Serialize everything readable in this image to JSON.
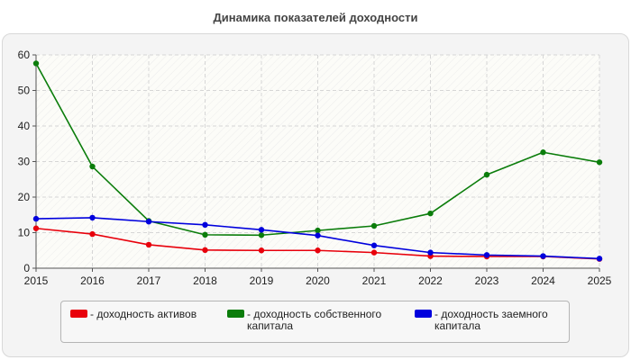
{
  "chart_data": {
    "type": "line",
    "title": "Динамика показателей доходности",
    "x": [
      "2015",
      "2016",
      "2017",
      "2018",
      "2019",
      "2020",
      "2021",
      "2022",
      "2023",
      "2024",
      "2025"
    ],
    "ylim": [
      0,
      60
    ],
    "yticks": [
      "0",
      "10",
      "20",
      "30",
      "40",
      "50",
      "60"
    ],
    "grid": true,
    "legend_position": "bottom",
    "series": [
      {
        "name": "- доходность активов",
        "color": "#e8000b",
        "values": [
          11.2,
          9.6,
          6.6,
          5.1,
          5.0,
          5.0,
          4.4,
          3.4,
          3.3,
          3.3,
          2.6
        ]
      },
      {
        "name": "- доходность собственного капитала",
        "color": "#0b7d0b",
        "values": [
          57.6,
          28.6,
          13.3,
          9.4,
          9.3,
          10.6,
          11.9,
          15.4,
          26.3,
          32.6,
          29.8
        ]
      },
      {
        "name": "- доходность заемного капитала",
        "color": "#0000dd",
        "values": [
          13.9,
          14.2,
          13.1,
          12.2,
          10.8,
          9.2,
          6.4,
          4.4,
          3.7,
          3.4,
          2.7
        ]
      }
    ]
  }
}
